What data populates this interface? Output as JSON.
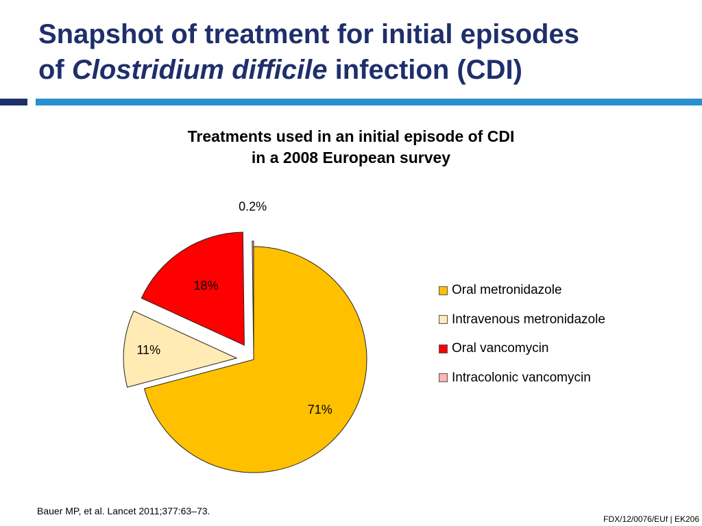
{
  "slide": {
    "title_part1": "Snapshot of treatment for initial episodes",
    "title_part2_prefix": "of ",
    "title_part2_italic": "Clostridium difficile",
    "title_part2_suffix": " infection (CDI)",
    "footnote": "Bauer MP, et al. Lancet 2011;377:63–73.",
    "code": "FDX/12/0076/EUf | EK206"
  },
  "colors": {
    "title": "#1f2f6b",
    "accent_bar": "#2a8fcf"
  },
  "chart_data": {
    "type": "pie",
    "title_line1": "Treatments used in an initial episode of CDI",
    "title_line2": "in a 2008 European survey",
    "legend_position": "right",
    "slices": [
      {
        "name": "Oral metronidazole",
        "value": 71,
        "label": "71%",
        "color": "#FFC000"
      },
      {
        "name": "Intravenous metronidazole",
        "value": 11,
        "label": "11%",
        "color": "#FFEBB3"
      },
      {
        "name": "Oral vancomycin",
        "value": 18,
        "label": "18%",
        "color": "#FF0000"
      },
      {
        "name": "Intracolonic vancomycin",
        "value": 0.2,
        "label": "0.2%",
        "color": "#FFB3B3"
      }
    ]
  }
}
